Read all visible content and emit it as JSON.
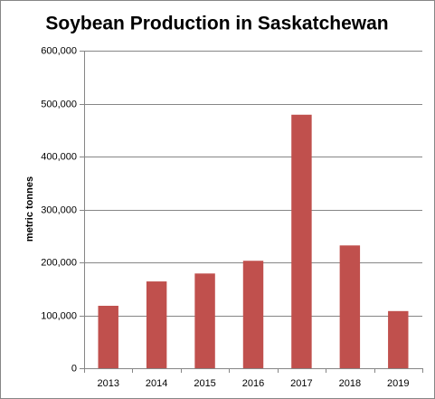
{
  "chart_data": {
    "type": "bar",
    "title": "Soybean Production in Saskatchewan",
    "y_label": "metric tonnes",
    "categories": [
      "2013",
      "2014",
      "2015",
      "2016",
      "2017",
      "2018",
      "2019"
    ],
    "values": [
      118000,
      164000,
      179000,
      203000,
      479000,
      232000,
      108000
    ],
    "color": "#c0504d",
    "ylim": [
      0,
      600000
    ],
    "yticks": [
      0,
      {
        "value": 100000,
        "label": "100,000"
      },
      {
        "value": 200000,
        "label": "200,000"
      },
      {
        "value": 300000,
        "label": "300,000"
      },
      {
        "value": 400000,
        "label": "400,000"
      },
      {
        "value": 500000,
        "label": "500,000"
      },
      {
        "value": 600000,
        "label": "600,000"
      }
    ],
    "grid": true
  }
}
